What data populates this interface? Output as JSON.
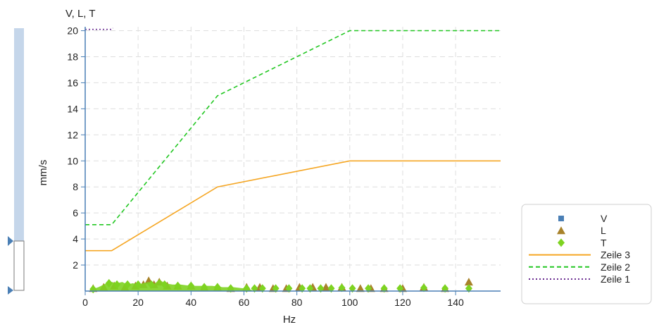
{
  "chart_data": {
    "type": "line",
    "title": "V, L, T",
    "xlabel": "Hz",
    "ylabel": "mm/s",
    "xlim": [
      0,
      157
    ],
    "ylim": [
      0,
      20.3
    ],
    "x_ticks": [
      0,
      20,
      40,
      60,
      80,
      100,
      120,
      140
    ],
    "y_ticks": [
      2,
      4,
      6,
      8,
      10,
      12,
      14,
      16,
      18,
      20
    ],
    "grid": true,
    "legend_position": "bottom-right",
    "series": [
      {
        "name": "V",
        "kind": "scatter",
        "marker": "square",
        "color": "#4a7fb5",
        "points": []
      },
      {
        "name": "L",
        "kind": "scatter",
        "marker": "triangle",
        "color": "#a8822a",
        "points": [
          [
            3,
            0.2
          ],
          [
            7,
            0.3
          ],
          [
            11,
            0.4
          ],
          [
            15,
            0.3
          ],
          [
            19,
            0.4
          ],
          [
            22,
            0.5
          ],
          [
            24,
            0.8
          ],
          [
            26,
            0.5
          ],
          [
            28,
            0.7
          ],
          [
            31,
            0.4
          ],
          [
            35,
            0.4
          ],
          [
            40,
            0.4
          ],
          [
            45,
            0.3
          ],
          [
            50,
            0.3
          ],
          [
            55,
            0.2
          ],
          [
            61,
            0.3
          ],
          [
            66,
            0.3
          ],
          [
            71,
            0.2
          ],
          [
            76,
            0.2
          ],
          [
            81,
            0.3
          ],
          [
            86,
            0.3
          ],
          [
            91,
            0.3
          ],
          [
            97,
            0.3
          ],
          [
            104,
            0.2
          ],
          [
            108,
            0.2
          ],
          [
            113,
            0.2
          ],
          [
            120,
            0.2
          ],
          [
            128,
            0.3
          ],
          [
            136,
            0.2
          ],
          [
            145,
            0.7
          ]
        ]
      },
      {
        "name": "T",
        "kind": "scatter",
        "marker": "diamond",
        "color": "#7ed321",
        "area": [
          [
            2,
            0.1
          ],
          [
            5,
            0.3
          ],
          [
            8,
            0.6
          ],
          [
            10,
            0.7
          ],
          [
            12,
            0.6
          ],
          [
            14,
            0.7
          ],
          [
            16,
            0.5
          ],
          [
            18,
            0.6
          ],
          [
            20,
            0.5
          ],
          [
            22,
            0.6
          ],
          [
            24,
            0.7
          ],
          [
            26,
            0.5
          ],
          [
            28,
            0.9
          ],
          [
            30,
            0.6
          ],
          [
            33,
            0.5
          ],
          [
            36,
            0.5
          ],
          [
            40,
            0.4
          ],
          [
            44,
            0.4
          ],
          [
            48,
            0.4
          ],
          [
            52,
            0.3
          ],
          [
            56,
            0.3
          ],
          [
            60,
            0.2
          ],
          [
            63,
            0.1
          ]
        ],
        "points": [
          [
            3,
            0.15
          ],
          [
            9,
            0.6
          ],
          [
            12,
            0.5
          ],
          [
            16,
            0.5
          ],
          [
            20,
            0.5
          ],
          [
            25,
            0.5
          ],
          [
            30,
            0.5
          ],
          [
            35,
            0.4
          ],
          [
            40,
            0.4
          ],
          [
            45,
            0.3
          ],
          [
            50,
            0.3
          ],
          [
            55,
            0.2
          ],
          [
            61,
            0.2
          ],
          [
            64,
            0.2
          ],
          [
            67,
            0.2
          ],
          [
            72,
            0.2
          ],
          [
            77,
            0.2
          ],
          [
            82,
            0.2
          ],
          [
            85,
            0.2
          ],
          [
            89,
            0.2
          ],
          [
            93,
            0.2
          ],
          [
            97,
            0.25
          ],
          [
            101,
            0.2
          ],
          [
            107,
            0.2
          ],
          [
            113,
            0.2
          ],
          [
            119,
            0.2
          ],
          [
            128,
            0.25
          ],
          [
            136,
            0.2
          ],
          [
            145,
            0.2
          ]
        ]
      },
      {
        "name": "Zeile 3",
        "kind": "line",
        "dash": "solid",
        "color": "#f5a623",
        "points": [
          [
            0,
            3.1
          ],
          [
            10,
            3.1
          ],
          [
            50,
            8
          ],
          [
            100,
            10
          ],
          [
            157,
            10
          ]
        ]
      },
      {
        "name": "Zeile 2",
        "kind": "line",
        "dash": "dashed",
        "color": "#22c722",
        "points": [
          [
            0,
            5.1
          ],
          [
            10,
            5.1
          ],
          [
            50,
            15
          ],
          [
            100,
            20
          ],
          [
            157,
            20
          ]
        ]
      },
      {
        "name": "Zeile 1",
        "kind": "line",
        "dash": "dotted",
        "color": "#6a2c91",
        "points": [
          [
            0,
            20.1
          ],
          [
            10,
            20.1
          ],
          [
            10.5,
            20.2
          ]
        ]
      }
    ]
  }
}
